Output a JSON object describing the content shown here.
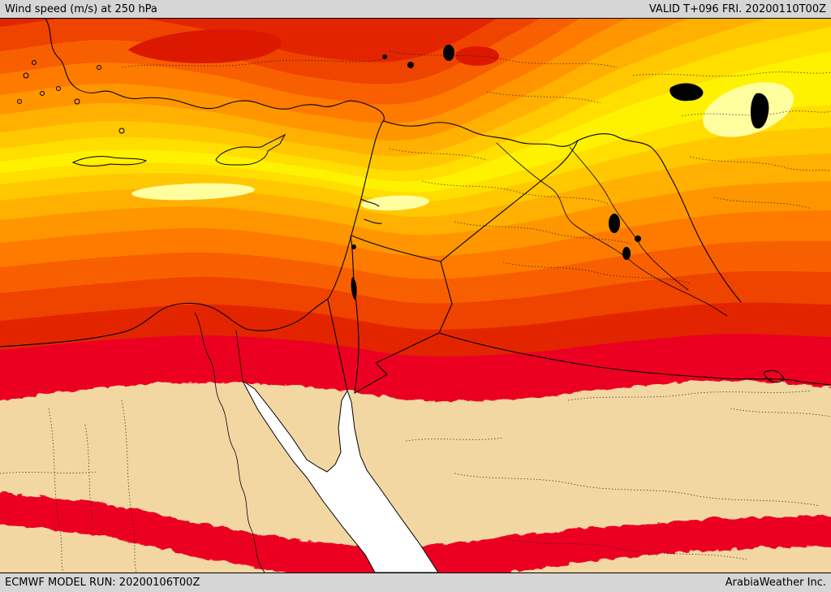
{
  "header": {
    "title": "Wind speed (m/s) at 250 hPa",
    "valid_label": "VALID T+096 FRI. 20200110T00Z"
  },
  "footer": {
    "model_run": "ECMWF MODEL RUN: 20200106T00Z",
    "credit": "ArabiaWeather Inc."
  },
  "map": {
    "type": "filled-contour-map",
    "variable": "Wind speed",
    "units": "m/s",
    "level": "250 hPa",
    "palette": {
      "land_low": "#f3d7a3",
      "red": "#ec0021",
      "red_orange_dark": "#e22500",
      "orange_red": "#ef4300",
      "deep_orange": "#f85f00",
      "orange": "#ff7b00",
      "bright_orange": "#ff9600",
      "amber": "#ffb000",
      "yellow_amber": "#ffc800",
      "yellow": "#ffde00",
      "bright_yellow": "#fff200",
      "pale_yellow": "#ffffa0",
      "wind_max_patch": "#dc1800",
      "sea_white": "#ffffff",
      "ink": "#000000",
      "bar_gray": "#d6d6d6"
    }
  }
}
